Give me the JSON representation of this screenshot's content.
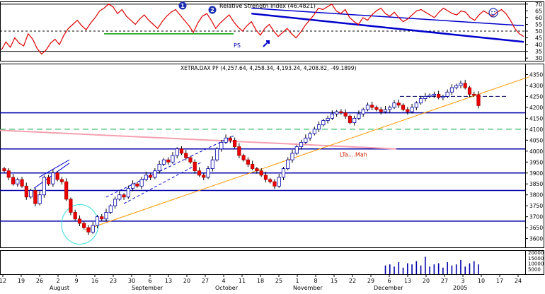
{
  "chart_data": [
    {
      "type": "line",
      "title": "Relative Strength Index (46.4821)",
      "marker_labels": [
        "1",
        "2"
      ],
      "ylim": [
        28,
        72
      ],
      "yticks": [
        30,
        35,
        40,
        45,
        50,
        55,
        60,
        65,
        70
      ],
      "hlines": [
        35,
        50,
        70
      ],
      "annotations": [
        "PS"
      ],
      "series": [
        {
          "values": [
            36,
            42,
            38,
            45,
            41,
            39,
            48,
            44,
            37,
            33,
            36,
            41,
            44,
            40,
            47,
            52,
            55,
            58,
            54,
            51,
            56,
            60,
            65,
            67,
            70,
            68,
            63,
            66,
            61,
            58,
            55,
            59,
            62,
            58,
            55,
            52,
            57,
            61,
            64,
            66,
            62,
            58,
            54,
            49,
            56,
            61,
            63,
            58,
            52,
            56,
            59,
            62,
            57,
            53,
            50,
            54,
            57,
            51,
            47,
            52,
            55,
            50,
            46,
            49,
            52,
            48,
            45,
            49,
            54,
            58,
            62,
            67,
            66,
            68,
            70,
            65,
            63,
            66,
            60,
            57,
            55,
            60,
            58,
            62,
            65,
            67,
            63,
            61,
            64,
            60,
            57,
            59,
            62,
            65,
            66,
            64,
            62,
            60,
            64,
            67,
            65,
            63,
            62,
            65,
            64,
            60,
            58,
            62,
            65,
            63,
            61,
            64,
            66,
            63,
            58,
            52,
            48,
            46
          ]
        }
      ],
      "trendlines": [
        {
          "from": [
            56,
            67
          ],
          "to": [
            117,
            54
          ]
        },
        {
          "from": [
            56,
            63
          ],
          "to": [
            117,
            42
          ]
        },
        {
          "from": [
            23,
            48
          ],
          "to": [
            52,
            48
          ]
        }
      ]
    },
    {
      "type": "candlestick",
      "title": "XETRA.DAX PF (4,257.64, 4,258.34, 4,193.24, 4,208.82, -49.1899)",
      "ylim": [
        3560,
        4400
      ],
      "yticks": [
        3600,
        3650,
        3700,
        3750,
        3800,
        3850,
        3900,
        3950,
        4000,
        4050,
        4100,
        4150,
        4200,
        4250,
        4300,
        4350
      ],
      "hlines": [
        4175,
        4010,
        3900,
        3820,
        3680
      ],
      "dashed_lines": [
        4100,
        4250
      ],
      "annotations": [
        "LTa....Mah"
      ],
      "closes": [
        3910,
        3880,
        3850,
        3870,
        3840,
        3790,
        3820,
        3760,
        3800,
        3880,
        3850,
        3900,
        3870,
        3860,
        3780,
        3720,
        3690,
        3670,
        3650,
        3630,
        3660,
        3700,
        3690,
        3720,
        3750,
        3780,
        3800,
        3790,
        3830,
        3850,
        3840,
        3870,
        3890,
        3880,
        3910,
        3940,
        3960,
        3950,
        3980,
        4010,
        3990,
        3970,
        3950,
        3910,
        3890,
        3880,
        3920,
        3960,
        4010,
        4040,
        4060,
        4050,
        4020,
        3980,
        3960,
        3940,
        3920,
        3910,
        3890,
        3870,
        3860,
        3840,
        3880,
        3920,
        3960,
        3990,
        4020,
        4040,
        4060,
        4080,
        4100,
        4120,
        4140,
        4150,
        4170,
        4180,
        4175,
        4160,
        4130,
        4150,
        4170,
        4190,
        4210,
        4200,
        4190,
        4180,
        4190,
        4200,
        4220,
        4210,
        4190,
        4180,
        4200,
        4220,
        4240,
        4250,
        4255,
        4260,
        4245,
        4250,
        4270,
        4290,
        4300,
        4310,
        4290,
        4260,
        4258,
        4208
      ],
      "volume": {
        "yticks": [
          "20000",
          "15000",
          "10000",
          "5000"
        ],
        "values": [
          8000,
          9000,
          7000,
          11000,
          6000,
          10000,
          9000,
          12000,
          8000,
          16000,
          7000,
          9000,
          10000,
          6000,
          11000,
          8000,
          9000,
          13000,
          7000,
          10000,
          12000,
          9000
        ]
      },
      "x_tick_labels": [
        "12",
        "19",
        "26",
        "2",
        "9",
        "16",
        "23",
        "30",
        "6",
        "13",
        "20",
        "27",
        "4",
        "11",
        "18",
        "25",
        "1",
        "8",
        "15",
        "22",
        "29",
        "6",
        "13",
        "20",
        "27",
        "3",
        "10",
        "17",
        "24"
      ],
      "month_labels": [
        "August",
        "September",
        "October",
        "November",
        "December",
        "2005"
      ]
    }
  ]
}
